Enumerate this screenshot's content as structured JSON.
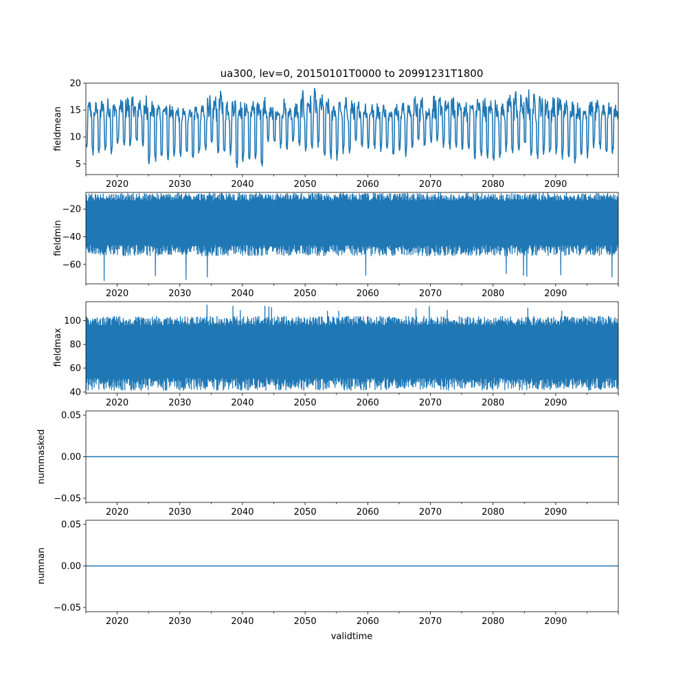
{
  "colors": {
    "series": "#1f77b4",
    "axes": "#000000",
    "background": "#ffffff"
  },
  "chart_data": {
    "type": "line",
    "title": "ua300, lev=0, 20150101T0000 to 20991231T1800",
    "xlabel": "validtime",
    "xlim": [
      2015.0,
      2100.0
    ],
    "xticks": [
      "2020",
      "2030",
      "2040",
      "2050",
      "2060",
      "2070",
      "2080",
      "2090"
    ],
    "panels": [
      {
        "ylabel": "fieldmean",
        "ylim": [
          3.0,
          20.0
        ],
        "yticks": [
          "5",
          "10",
          "15",
          "20"
        ],
        "style": "seasonal",
        "series": [
          {
            "x_start": "2015-01-01",
            "x_end": "2099-12-31",
            "envelope_low": [
              6.0,
              7.2,
              4.6,
              5.0,
              6.2,
              3.8,
              7.0,
              6.5,
              5.2,
              6.8,
              6.0,
              7.4,
              6.9,
              4.8,
              6.2,
              5.5,
              5.0,
              6.4
            ],
            "envelope_high": [
              17.6,
              18.8,
              17.0,
              16.6,
              19.0,
              17.6,
              17.2,
              19.4,
              17.8,
              17.4,
              17.0,
              18.6,
              18.0,
              18.2,
              19.3,
              18.6,
              17.6,
              17.4
            ],
            "typical_low": 8.0,
            "typical_high": 16.8
          }
        ]
      },
      {
        "ylabel": "fieldmin",
        "ylim": [
          -74.0,
          -8.0
        ],
        "yticks": [
          "−20",
          "−40",
          "−60"
        ],
        "style": "noisy",
        "series": [
          {
            "x_start": "2015-01-01",
            "x_end": "2099-12-31",
            "band_low": -46.0,
            "band_high": -14.0,
            "center": -30.0,
            "extreme_low": -72.0,
            "extreme_high": -10.0
          }
        ]
      },
      {
        "ylabel": "fieldmax",
        "ylim": [
          39.0,
          116.0
        ],
        "yticks": [
          "40",
          "60",
          "80",
          "100"
        ],
        "style": "noisy",
        "series": [
          {
            "x_start": "2015-01-01",
            "x_end": "2099-12-31",
            "band_low": 52.0,
            "band_high": 96.0,
            "center": 74.0,
            "extreme_low": 42.0,
            "extreme_high": 114.0
          }
        ]
      },
      {
        "ylabel": "nummasked",
        "ylim": [
          -0.055,
          0.055
        ],
        "yticks": [
          "0.05",
          "0.00",
          "−0.05"
        ],
        "style": "constant",
        "series": [
          {
            "x_start": "2015-01-01",
            "x_end": "2099-12-31",
            "value": 0.0
          }
        ]
      },
      {
        "ylabel": "numnan",
        "ylim": [
          -0.055,
          0.055
        ],
        "yticks": [
          "0.05",
          "0.00",
          "−0.05"
        ],
        "style": "constant",
        "series": [
          {
            "x_start": "2015-01-01",
            "x_end": "2099-12-31",
            "value": 0.0
          }
        ]
      }
    ]
  }
}
